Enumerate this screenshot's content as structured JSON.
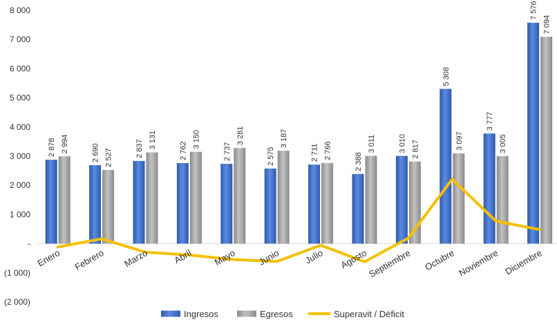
{
  "chart_data": {
    "type": "bar",
    "categories": [
      "Enero",
      "Febrero",
      "Marzo",
      "Abril",
      "Mayo",
      "Junio",
      "Julio",
      "Agosto",
      "Septiembre",
      "Octubre",
      "Noviembre",
      "Diciembre"
    ],
    "series": [
      {
        "name": "Ingresos",
        "type": "bar",
        "color": "#4472C4",
        "values": [
          2878,
          2690,
          2837,
          2762,
          2737,
          2575,
          2711,
          2388,
          3010,
          5308,
          3777,
          7576
        ],
        "labels": [
          "2 878",
          "2 690",
          "2 837",
          "2 762",
          "2 737",
          "2 575",
          "2 711",
          "2 388",
          "3 010",
          "5 308",
          "3 777",
          "7 576"
        ]
      },
      {
        "name": "Egresos",
        "type": "bar",
        "color": "#A5A5A5",
        "values": [
          2994,
          2527,
          3131,
          3150,
          3281,
          3187,
          2766,
          3011,
          2817,
          3097,
          3005,
          7094
        ],
        "labels": [
          "2 994",
          "2 527",
          "3 131",
          "3 150",
          "3 281",
          "3 187",
          "2 766",
          "3 011",
          "2 817",
          "3 097",
          "3 005",
          "7 094"
        ]
      },
      {
        "name": "Superavit / Déficit",
        "type": "line",
        "color": "#F5C000",
        "values": [
          -116,
          163,
          -294,
          -388,
          -544,
          -612,
          -55,
          -623,
          193,
          2211,
          772,
          482
        ]
      }
    ],
    "y_ticks": [
      8000,
      7000,
      6000,
      5000,
      4000,
      3000,
      2000,
      1000,
      0,
      -1000,
      -2000
    ],
    "y_tick_labels": [
      "8 000",
      "7 000",
      "6 000",
      "5 000",
      "4 000",
      "3 000",
      "2 000",
      "1 000",
      "-",
      "(1 000)",
      "(2 000)"
    ],
    "ylim": [
      -2000,
      8000
    ],
    "title": "",
    "xlabel": "",
    "ylabel": "",
    "grid": false,
    "legend_position": "bottom"
  }
}
